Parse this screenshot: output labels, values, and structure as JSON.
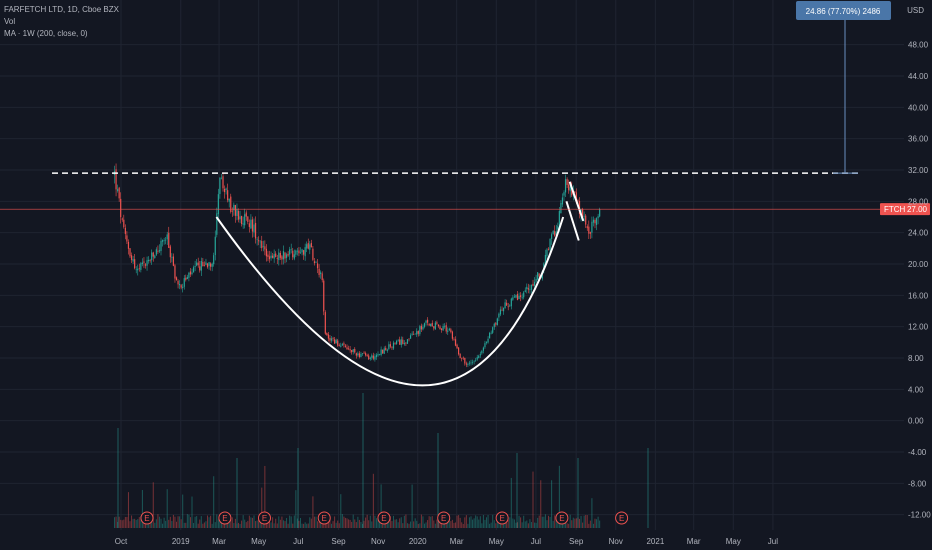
{
  "legend": {
    "symbol_line": "FARFETCH LTD, 1D, Cboe BZX",
    "vol_label": "Vol",
    "ma_label": "MA · 1W (200, close, 0)"
  },
  "price_axis": {
    "currency": "USD",
    "ticks": [
      "48.00",
      "44.00",
      "40.00",
      "36.00",
      "32.00",
      "28.00",
      "24.00",
      "20.00",
      "16.00",
      "12.00",
      "8.00",
      "4.00",
      "0.00",
      "-4.00",
      "-8.00",
      "-12.00"
    ]
  },
  "time_axis": {
    "ticks": [
      "Oct",
      "2019",
      "Mar",
      "May",
      "Jul",
      "Sep",
      "Nov",
      "2020",
      "Mar",
      "May",
      "Jul",
      "Sep",
      "Nov",
      "2021",
      "Mar",
      "May",
      "Jul"
    ]
  },
  "price_label": {
    "symbol": "FTCH",
    "value": "27.00"
  },
  "measure_label": "24.86 (77.70%) 2486",
  "earnings_marker": "E",
  "colors": {
    "background": "#131722",
    "up": "#26a69a",
    "down": "#ef5350",
    "axis_text": "#b2b5be",
    "grid": "#1f2431",
    "price_line": "#ef5350",
    "measure_box": "#4a76a8",
    "drawing": "#ffffff"
  },
  "chart_data": {
    "type": "candlestick",
    "symbol": "FTCH",
    "interval": "1D",
    "y_axis": {
      "min": -14,
      "max": 52,
      "ticks": [
        48,
        44,
        40,
        36,
        32,
        28,
        24,
        20,
        16,
        12,
        8,
        4,
        0,
        -4,
        -8,
        -12
      ]
    },
    "last_price": 27.0,
    "resistance_level": 31.6,
    "measured_move": {
      "change": 24.86,
      "percent": 77.7,
      "target": 31.6
    },
    "earnings_dates": [
      "2018-11",
      "2019-03",
      "2019-05",
      "2019-08",
      "2019-11",
      "2020-02",
      "2020-05",
      "2020-08",
      "2020-11"
    ],
    "price_path": [
      {
        "date": "2018-09-21",
        "price": 31.5
      },
      {
        "date": "2018-10-05",
        "price": 24.0
      },
      {
        "date": "2018-10-25",
        "price": 19.0
      },
      {
        "date": "2018-11-20",
        "price": 21.0
      },
      {
        "date": "2018-12-10",
        "price": 23.5
      },
      {
        "date": "2018-12-28",
        "price": 17.0
      },
      {
        "date": "2019-01-25",
        "price": 19.5
      },
      {
        "date": "2019-02-20",
        "price": 20.5
      },
      {
        "date": "2019-03-01",
        "price": 31.0
      },
      {
        "date": "2019-03-20",
        "price": 27.0
      },
      {
        "date": "2019-04-20",
        "price": 25.0
      },
      {
        "date": "2019-05-20",
        "price": 20.5
      },
      {
        "date": "2019-06-15",
        "price": 21.5
      },
      {
        "date": "2019-07-20",
        "price": 22.0
      },
      {
        "date": "2019-08-08",
        "price": 18.0
      },
      {
        "date": "2019-08-10",
        "price": 11.0
      },
      {
        "date": "2019-09-15",
        "price": 9.0
      },
      {
        "date": "2019-10-20",
        "price": 8.0
      },
      {
        "date": "2019-11-20",
        "price": 9.5
      },
      {
        "date": "2019-12-20",
        "price": 10.5
      },
      {
        "date": "2020-01-15",
        "price": 12.5
      },
      {
        "date": "2020-02-20",
        "price": 11.5
      },
      {
        "date": "2020-03-05",
        "price": 8.5
      },
      {
        "date": "2020-03-18",
        "price": 7.0
      },
      {
        "date": "2020-04-10",
        "price": 9.0
      },
      {
        "date": "2020-05-10",
        "price": 14.5
      },
      {
        "date": "2020-06-10",
        "price": 16.0
      },
      {
        "date": "2020-07-10",
        "price": 19.0
      },
      {
        "date": "2020-08-05",
        "price": 26.0
      },
      {
        "date": "2020-08-18",
        "price": 31.0
      },
      {
        "date": "2020-09-05",
        "price": 27.0
      },
      {
        "date": "2020-09-22",
        "price": 24.0
      },
      {
        "date": "2020-10-09",
        "price": 27.0
      }
    ],
    "drawings": {
      "cup": {
        "start": {
          "date": "2019-02-25",
          "price": 26
        },
        "bottom": {
          "date": "2020-01-25",
          "price": 4.5
        },
        "end": {
          "date": "2020-08-12",
          "price": 26
        }
      },
      "handle_lines": [
        {
          "from": {
            "date": "2020-08-17",
            "price": 28
          },
          "to": {
            "date": "2020-09-05",
            "price": 23
          }
        },
        {
          "from": {
            "date": "2020-08-22",
            "price": 30.5
          },
          "to": {
            "date": "2020-09-12",
            "price": 25.5
          }
        }
      ]
    }
  }
}
